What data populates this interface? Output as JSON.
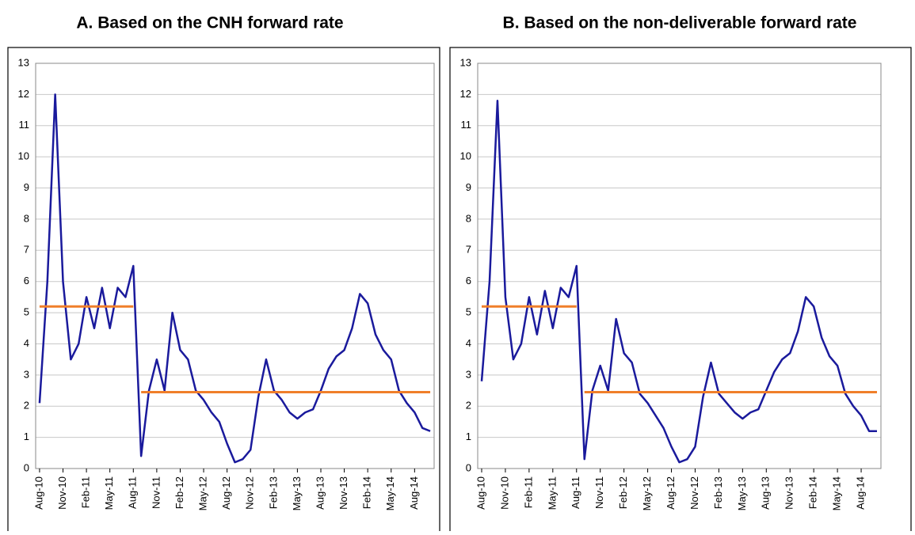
{
  "chart_data": [
    {
      "type": "line",
      "title": "A. Based on the CNH forward rate",
      "categories": [
        "Aug-10",
        null,
        null,
        "Nov-10",
        null,
        null,
        "Feb-11",
        null,
        null,
        "May-11",
        null,
        null,
        "Aug-11",
        null,
        null,
        "Nov-11",
        null,
        null,
        "Feb-12",
        null,
        null,
        "May-12",
        null,
        null,
        "Aug-12",
        null,
        null,
        "Nov-12",
        null,
        null,
        "Feb-13",
        null,
        null,
        "May-13",
        null,
        null,
        "Aug-13",
        null,
        null,
        "Nov-13",
        null,
        null,
        "Feb-14",
        null,
        null,
        "May-14",
        null,
        null,
        "Aug-14",
        null,
        null
      ],
      "series": [
        {
          "color": "#1a1a9c",
          "values": [
            2.1,
            6,
            12,
            6,
            3.5,
            4,
            5.5,
            4.5,
            5.8,
            4.5,
            5.8,
            5.5,
            6.5,
            0.4,
            2.5,
            3.5,
            2.5,
            5,
            3.8,
            3.5,
            2.5,
            2.2,
            1.8,
            1.5,
            0.8,
            0.2,
            0.3,
            0.6,
            2.3,
            3.5,
            2.5,
            2.2,
            1.8,
            1.6,
            1.8,
            1.9,
            2.5,
            3.2,
            3.6,
            3.8,
            4.5,
            5.6,
            5.3,
            4.3,
            3.8,
            3.5,
            2.5,
            2.1,
            1.8,
            1.3,
            1.2
          ]
        },
        {
          "color": "#f07f2a",
          "values": [
            5.2,
            5.2,
            5.2,
            5.2,
            5.2,
            5.2,
            5.2,
            5.2,
            5.2,
            5.2,
            5.2,
            5.2,
            5.2,
            null,
            null,
            null,
            null,
            null,
            null,
            null,
            null,
            null,
            null,
            null,
            null,
            null,
            null,
            null,
            null,
            null,
            null,
            null,
            null,
            null,
            null,
            null,
            null,
            null,
            null,
            null,
            null,
            null,
            null,
            null,
            null,
            null,
            null,
            null,
            null,
            null,
            null
          ]
        },
        {
          "color": "#f07f2a",
          "values": [
            null,
            null,
            null,
            null,
            null,
            null,
            null,
            null,
            null,
            null,
            null,
            null,
            null,
            2.45,
            2.45,
            2.45,
            2.45,
            2.45,
            2.45,
            2.45,
            2.45,
            2.45,
            2.45,
            2.45,
            2.45,
            2.45,
            2.45,
            2.45,
            2.45,
            2.45,
            2.45,
            2.45,
            2.45,
            2.45,
            2.45,
            2.45,
            2.45,
            2.45,
            2.45,
            2.45,
            2.45,
            2.45,
            2.45,
            2.45,
            2.45,
            2.45,
            2.45,
            2.45,
            2.45,
            2.45,
            2.45
          ]
        }
      ],
      "ylim": [
        0,
        13
      ],
      "yticks": [
        0,
        1,
        2,
        3,
        4,
        5,
        6,
        7,
        8,
        9,
        10,
        11,
        12,
        13
      ],
      "grid": true
    },
    {
      "type": "line",
      "title": "B. Based on the non-deliverable forward rate",
      "categories": [
        "Aug-10",
        null,
        null,
        "Nov-10",
        null,
        null,
        "Feb-11",
        null,
        null,
        "May-11",
        null,
        null,
        "Aug-11",
        null,
        null,
        "Nov-11",
        null,
        null,
        "Feb-12",
        null,
        null,
        "May-12",
        null,
        null,
        "Aug-12",
        null,
        null,
        "Nov-12",
        null,
        null,
        "Feb-13",
        null,
        null,
        "May-13",
        null,
        null,
        "Aug-13",
        null,
        null,
        "Nov-13",
        null,
        null,
        "Feb-14",
        null,
        null,
        "May-14",
        null,
        null,
        "Aug-14",
        null,
        null
      ],
      "series": [
        {
          "color": "#1a1a9c",
          "values": [
            2.8,
            6,
            11.8,
            5.5,
            3.5,
            4,
            5.5,
            4.3,
            5.7,
            4.5,
            5.8,
            5.5,
            6.5,
            0.3,
            2.5,
            3.3,
            2.5,
            4.8,
            3.7,
            3.4,
            2.4,
            2.1,
            1.7,
            1.3,
            0.7,
            0.2,
            0.3,
            0.7,
            2.3,
            3.4,
            2.4,
            2.1,
            1.8,
            1.6,
            1.8,
            1.9,
            2.5,
            3.1,
            3.5,
            3.7,
            4.4,
            5.5,
            5.2,
            4.2,
            3.6,
            3.3,
            2.4,
            2,
            1.7,
            1.2,
            1.2
          ]
        },
        {
          "color": "#f07f2a",
          "values": [
            5.2,
            5.2,
            5.2,
            5.2,
            5.2,
            5.2,
            5.2,
            5.2,
            5.2,
            5.2,
            5.2,
            5.2,
            5.2,
            null,
            null,
            null,
            null,
            null,
            null,
            null,
            null,
            null,
            null,
            null,
            null,
            null,
            null,
            null,
            null,
            null,
            null,
            null,
            null,
            null,
            null,
            null,
            null,
            null,
            null,
            null,
            null,
            null,
            null,
            null,
            null,
            null,
            null,
            null,
            null,
            null,
            null
          ]
        },
        {
          "color": "#f07f2a",
          "values": [
            null,
            null,
            null,
            null,
            null,
            null,
            null,
            null,
            null,
            null,
            null,
            null,
            null,
            2.45,
            2.45,
            2.45,
            2.45,
            2.45,
            2.45,
            2.45,
            2.45,
            2.45,
            2.45,
            2.45,
            2.45,
            2.45,
            2.45,
            2.45,
            2.45,
            2.45,
            2.45,
            2.45,
            2.45,
            2.45,
            2.45,
            2.45,
            2.45,
            2.45,
            2.45,
            2.45,
            2.45,
            2.45,
            2.45,
            2.45,
            2.45,
            2.45,
            2.45,
            2.45,
            2.45,
            2.45,
            2.45
          ]
        }
      ],
      "ylim": [
        0,
        13
      ],
      "yticks": [
        0,
        1,
        2,
        3,
        4,
        5,
        6,
        7,
        8,
        9,
        10,
        11,
        12,
        13
      ],
      "grid": true
    }
  ]
}
